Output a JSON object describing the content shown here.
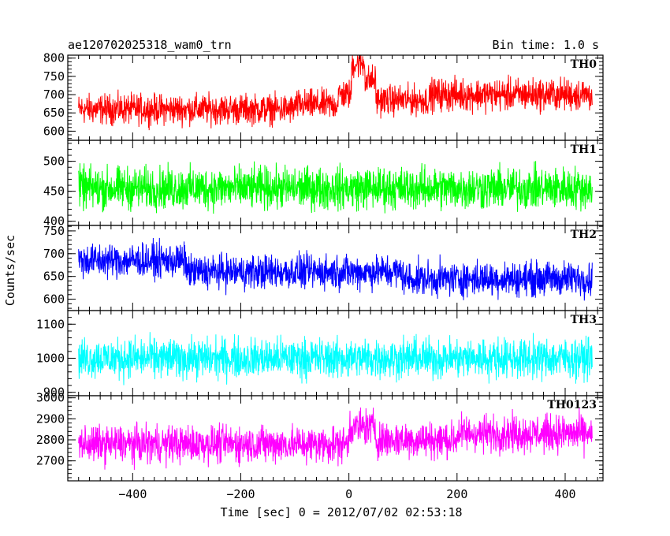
{
  "chart_data": {
    "type": "line",
    "title_left": "ae120702025318_wam0_trn",
    "title_right": "Bin time: 1.0 s",
    "xlabel": "Time [sec] 0 = 2012/07/02 02:53:18",
    "ylabel": "Counts/sec",
    "xlim": [
      -520,
      470
    ],
    "x_start": -500,
    "x_end": 450,
    "x_ticks": [
      -400,
      -200,
      0,
      200,
      400
    ],
    "panels": [
      {
        "name": "TH0",
        "color": "#ff0000",
        "ylim": [
          575,
          808
        ],
        "y_ticks": [
          600,
          650,
          700,
          750,
          800
        ],
        "segments": [
          {
            "x0": -500,
            "x1": -100,
            "mean": 660,
            "amp": 35
          },
          {
            "x0": -100,
            "x1": -20,
            "mean": 672,
            "amp": 35
          },
          {
            "x0": -20,
            "x1": 5,
            "mean": 700,
            "amp": 35
          },
          {
            "x0": 5,
            "x1": 30,
            "mean": 785,
            "amp": 35
          },
          {
            "x0": 30,
            "x1": 50,
            "mean": 740,
            "amp": 35
          },
          {
            "x0": 50,
            "x1": 150,
            "mean": 685,
            "amp": 35
          },
          {
            "x0": 150,
            "x1": 450,
            "mean": 700,
            "amp": 38
          }
        ]
      },
      {
        "name": "TH1",
        "color": "#00ff00",
        "ylim": [
          393,
          535
        ],
        "y_ticks": [
          400,
          450,
          500
        ],
        "segments": [
          {
            "x0": -500,
            "x1": 450,
            "mean": 455,
            "amp": 30
          }
        ]
      },
      {
        "name": "TH2",
        "color": "#0000ff",
        "ylim": [
          575,
          762
        ],
        "y_ticks": [
          600,
          650,
          700,
          750
        ],
        "segments": [
          {
            "x0": -500,
            "x1": -300,
            "mean": 685,
            "amp": 32
          },
          {
            "x0": -300,
            "x1": 100,
            "mean": 660,
            "amp": 32
          },
          {
            "x0": 100,
            "x1": 450,
            "mean": 645,
            "amp": 32
          }
        ]
      },
      {
        "name": "TH3",
        "color": "#00ffff",
        "ylim": [
          890,
          1140
        ],
        "y_ticks": [
          900,
          1000,
          1100
        ],
        "segments": [
          {
            "x0": -500,
            "x1": 450,
            "mean": 1000,
            "amp": 50
          }
        ]
      },
      {
        "name": "TH0123",
        "color": "#ff00ff",
        "ylim": [
          2605,
          3010
        ],
        "y_ticks": [
          2700,
          2800,
          2900,
          3000
        ],
        "segments": [
          {
            "x0": -500,
            "x1": 0,
            "mean": 2780,
            "amp": 75
          },
          {
            "x0": 0,
            "x1": 50,
            "mean": 2860,
            "amp": 75
          },
          {
            "x0": 50,
            "x1": 200,
            "mean": 2800,
            "amp": 75
          },
          {
            "x0": 200,
            "x1": 450,
            "mean": 2830,
            "amp": 75
          }
        ]
      }
    ]
  }
}
